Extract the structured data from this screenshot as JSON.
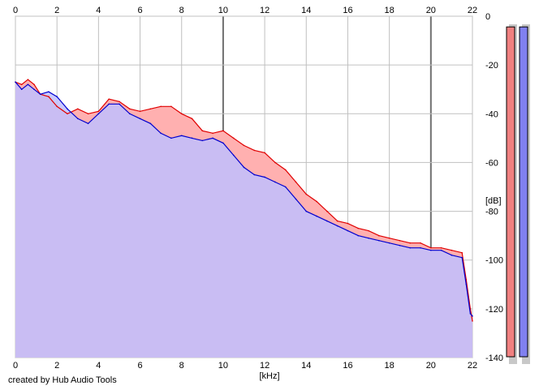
{
  "chart_data": {
    "type": "area",
    "xlabel": "[kHz]",
    "ylabel": "[dB]",
    "xlim": [
      0,
      22
    ],
    "ylim": [
      -140,
      0
    ],
    "x_ticks": [
      0,
      2,
      4,
      6,
      8,
      10,
      12,
      14,
      16,
      18,
      20,
      22
    ],
    "y_ticks": [
      0,
      -20,
      -40,
      -60,
      -80,
      -100,
      -120,
      -140
    ],
    "major_x_gridlines": [
      10,
      20
    ],
    "grid": true,
    "series": [
      {
        "color": "#e00000",
        "fill": "#ffb0b0",
        "x": [
          0,
          0.3,
          0.6,
          0.9,
          1.2,
          1.6,
          2,
          2.5,
          3,
          3.5,
          4,
          4.5,
          5,
          5.5,
          6,
          6.5,
          7,
          7.5,
          8,
          8.5,
          9,
          9.5,
          10,
          10.5,
          11,
          11.5,
          12,
          12.5,
          13,
          13.5,
          14,
          14.5,
          15,
          15.5,
          16,
          16.5,
          17,
          17.5,
          18,
          18.5,
          19,
          19.5,
          20,
          20.5,
          21,
          21.5,
          21.7,
          21.9,
          22
        ],
        "values": [
          -27,
          -28,
          -26,
          -28,
          -32,
          -33,
          -37,
          -40,
          -38,
          -40,
          -39,
          -34,
          -35,
          -38,
          -39,
          -38,
          -37,
          -37,
          -40,
          -42,
          -47,
          -48,
          -47,
          -50,
          -53,
          -55,
          -56,
          -60,
          -63,
          -68,
          -73,
          -76,
          -80,
          -84,
          -85,
          -87,
          -88,
          -90,
          -91,
          -92,
          -93,
          -93,
          -95,
          -95,
          -96,
          -97,
          -108,
          -120,
          -125
        ]
      },
      {
        "color": "#0000d0",
        "fill": "#c0c0ff",
        "x": [
          0,
          0.3,
          0.6,
          0.9,
          1.2,
          1.6,
          2,
          2.5,
          3,
          3.5,
          4,
          4.5,
          5,
          5.5,
          6,
          6.5,
          7,
          7.5,
          8,
          8.5,
          9,
          9.5,
          10,
          10.5,
          11,
          11.5,
          12,
          12.5,
          13,
          13.5,
          14,
          14.5,
          15,
          15.5,
          16,
          16.5,
          17,
          17.5,
          18,
          18.5,
          19,
          19.5,
          20,
          20.5,
          21,
          21.5,
          21.7,
          21.9,
          22
        ],
        "values": [
          -27,
          -30,
          -28,
          -30,
          -32,
          -31,
          -33,
          -38,
          -42,
          -44,
          -40,
          -36,
          -36,
          -40,
          -42,
          -44,
          -48,
          -50,
          -49,
          -50,
          -51,
          -50,
          -52,
          -57,
          -62,
          -65,
          -66,
          -68,
          -70,
          -75,
          -80,
          -82,
          -84,
          -86,
          -88,
          -90,
          -91,
          -92,
          -93,
          -94,
          -95,
          -95,
          -96,
          -96,
          -98,
          -99,
          -110,
          -122,
          -123
        ]
      }
    ],
    "level_meters": [
      {
        "color": "#f08080",
        "level": 0.985
      },
      {
        "color": "#8080f0",
        "level": 0.985
      }
    ]
  },
  "footer": {
    "credit": "created by Hub Audio Tools"
  }
}
